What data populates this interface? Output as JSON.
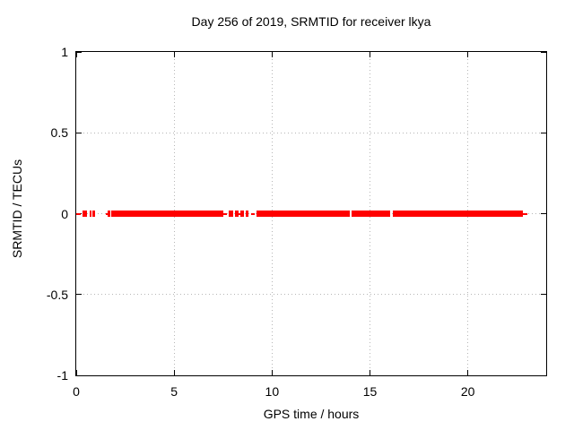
{
  "chart_data": {
    "type": "scatter",
    "title": "Day 256 of 2019, SRMTID for receiver lkya",
    "xlabel": "GPS time / hours",
    "ylabel": "SRMTID / TECUs",
    "xlim": [
      0,
      24
    ],
    "ylim": [
      -1,
      1
    ],
    "xticks": [
      0,
      5,
      10,
      15,
      20
    ],
    "xtick_labels": [
      "0",
      "5",
      "10",
      "15",
      "20"
    ],
    "yticks": [
      1,
      0.5,
      0,
      -0.5,
      -1
    ],
    "ytick_labels": [
      "1",
      "0.5",
      "0",
      "-0.5",
      "-1"
    ],
    "grid": true,
    "legend_position": "none",
    "colors": {
      "background": "#ffffff",
      "border": "#000000",
      "grid": "#b6b6b6",
      "text": "#000000",
      "series": "#ff0000"
    },
    "series": [
      {
        "name": "SRMTID",
        "color": "#ff0000",
        "marker": "filled-square",
        "style": "linespoints",
        "y_value": 0,
        "x_extent_hours": [
          0.0,
          23.0
        ],
        "segments_hours": {
          "thick": [
            [
              0.3,
              0.57
            ],
            [
              0.69,
              0.8
            ],
            [
              0.84,
              0.96
            ],
            [
              1.6,
              1.73
            ],
            [
              1.78,
              7.5
            ],
            [
              7.8,
              8.02
            ],
            [
              8.11,
              8.3
            ],
            [
              8.4,
              8.57
            ],
            [
              8.64,
              8.81
            ],
            [
              9.22,
              13.97
            ],
            [
              14.04,
              16.04
            ],
            [
              16.19,
              22.8
            ]
          ],
          "thin": [
            [
              0.0,
              0.23
            ],
            [
              1.52,
              1.62
            ],
            [
              7.5,
              7.71
            ],
            [
              8.3,
              8.4
            ],
            [
              8.92,
              9.13
            ],
            [
              22.8,
              23.02
            ]
          ]
        }
      }
    ]
  }
}
